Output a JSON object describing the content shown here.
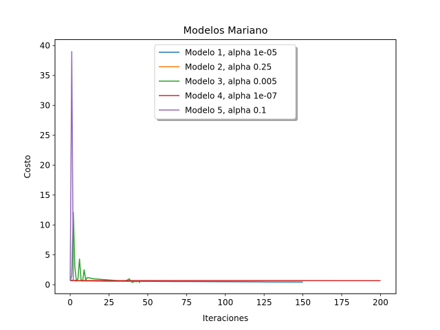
{
  "chart_data": {
    "type": "line",
    "title": "Modelos Mariano",
    "xlabel": "Iteraciones",
    "ylabel": "Costo",
    "xlim": [
      -9.8,
      210
    ],
    "ylim": [
      -1.5,
      41.0
    ],
    "xticks": [
      0,
      25,
      50,
      75,
      100,
      125,
      150,
      175,
      200
    ],
    "yticks": [
      0,
      5,
      10,
      15,
      20,
      25,
      30,
      35,
      40
    ],
    "grid": false,
    "legend_position": "upper center",
    "series": [
      {
        "name": "Modelo 1, alpha 1e-05",
        "color": "#1f77b4",
        "x": [
          0,
          1,
          5,
          10,
          25,
          50,
          75,
          100,
          125,
          150
        ],
        "y": [
          0.7,
          0.68,
          0.66,
          0.64,
          0.6,
          0.56,
          0.53,
          0.5,
          0.47,
          0.45
        ]
      },
      {
        "name": "Modelo 2, alpha 0.25",
        "color": "#ff7f0e",
        "x": [
          0,
          1,
          2,
          3,
          5,
          10,
          20
        ],
        "y": [
          0.7,
          0.8,
          0.66,
          0.72,
          0.68,
          0.69,
          0.69
        ]
      },
      {
        "name": "Modelo 3, alpha 0.005",
        "color": "#2ca02c",
        "x": [
          0,
          1,
          2,
          3,
          4,
          5,
          6,
          7,
          8,
          9,
          10,
          11,
          12,
          15,
          20,
          25,
          30,
          35,
          37,
          38,
          39,
          40,
          41,
          42,
          43,
          44,
          45
        ],
        "y": [
          0.7,
          1.5,
          12.1,
          3.0,
          0.6,
          1.0,
          4.3,
          0.8,
          0.6,
          2.5,
          0.8,
          1.2,
          1.15,
          1.0,
          0.9,
          0.8,
          0.7,
          0.6,
          0.8,
          1.0,
          0.6,
          0.4,
          0.5,
          0.55,
          0.5,
          0.6,
          0.3
        ]
      },
      {
        "name": "Modelo 4, alpha 1e-07",
        "color": "#d62728",
        "x": [
          0,
          25,
          50,
          75,
          100,
          125,
          150,
          175,
          200
        ],
        "y": [
          0.7,
          0.7,
          0.7,
          0.69,
          0.69,
          0.69,
          0.69,
          0.68,
          0.68
        ]
      },
      {
        "name": "Modelo 5, alpha 0.1",
        "color": "#9467bd",
        "x": [
          0,
          1,
          2
        ],
        "y": [
          0.7,
          39.0,
          0.7
        ]
      }
    ]
  }
}
